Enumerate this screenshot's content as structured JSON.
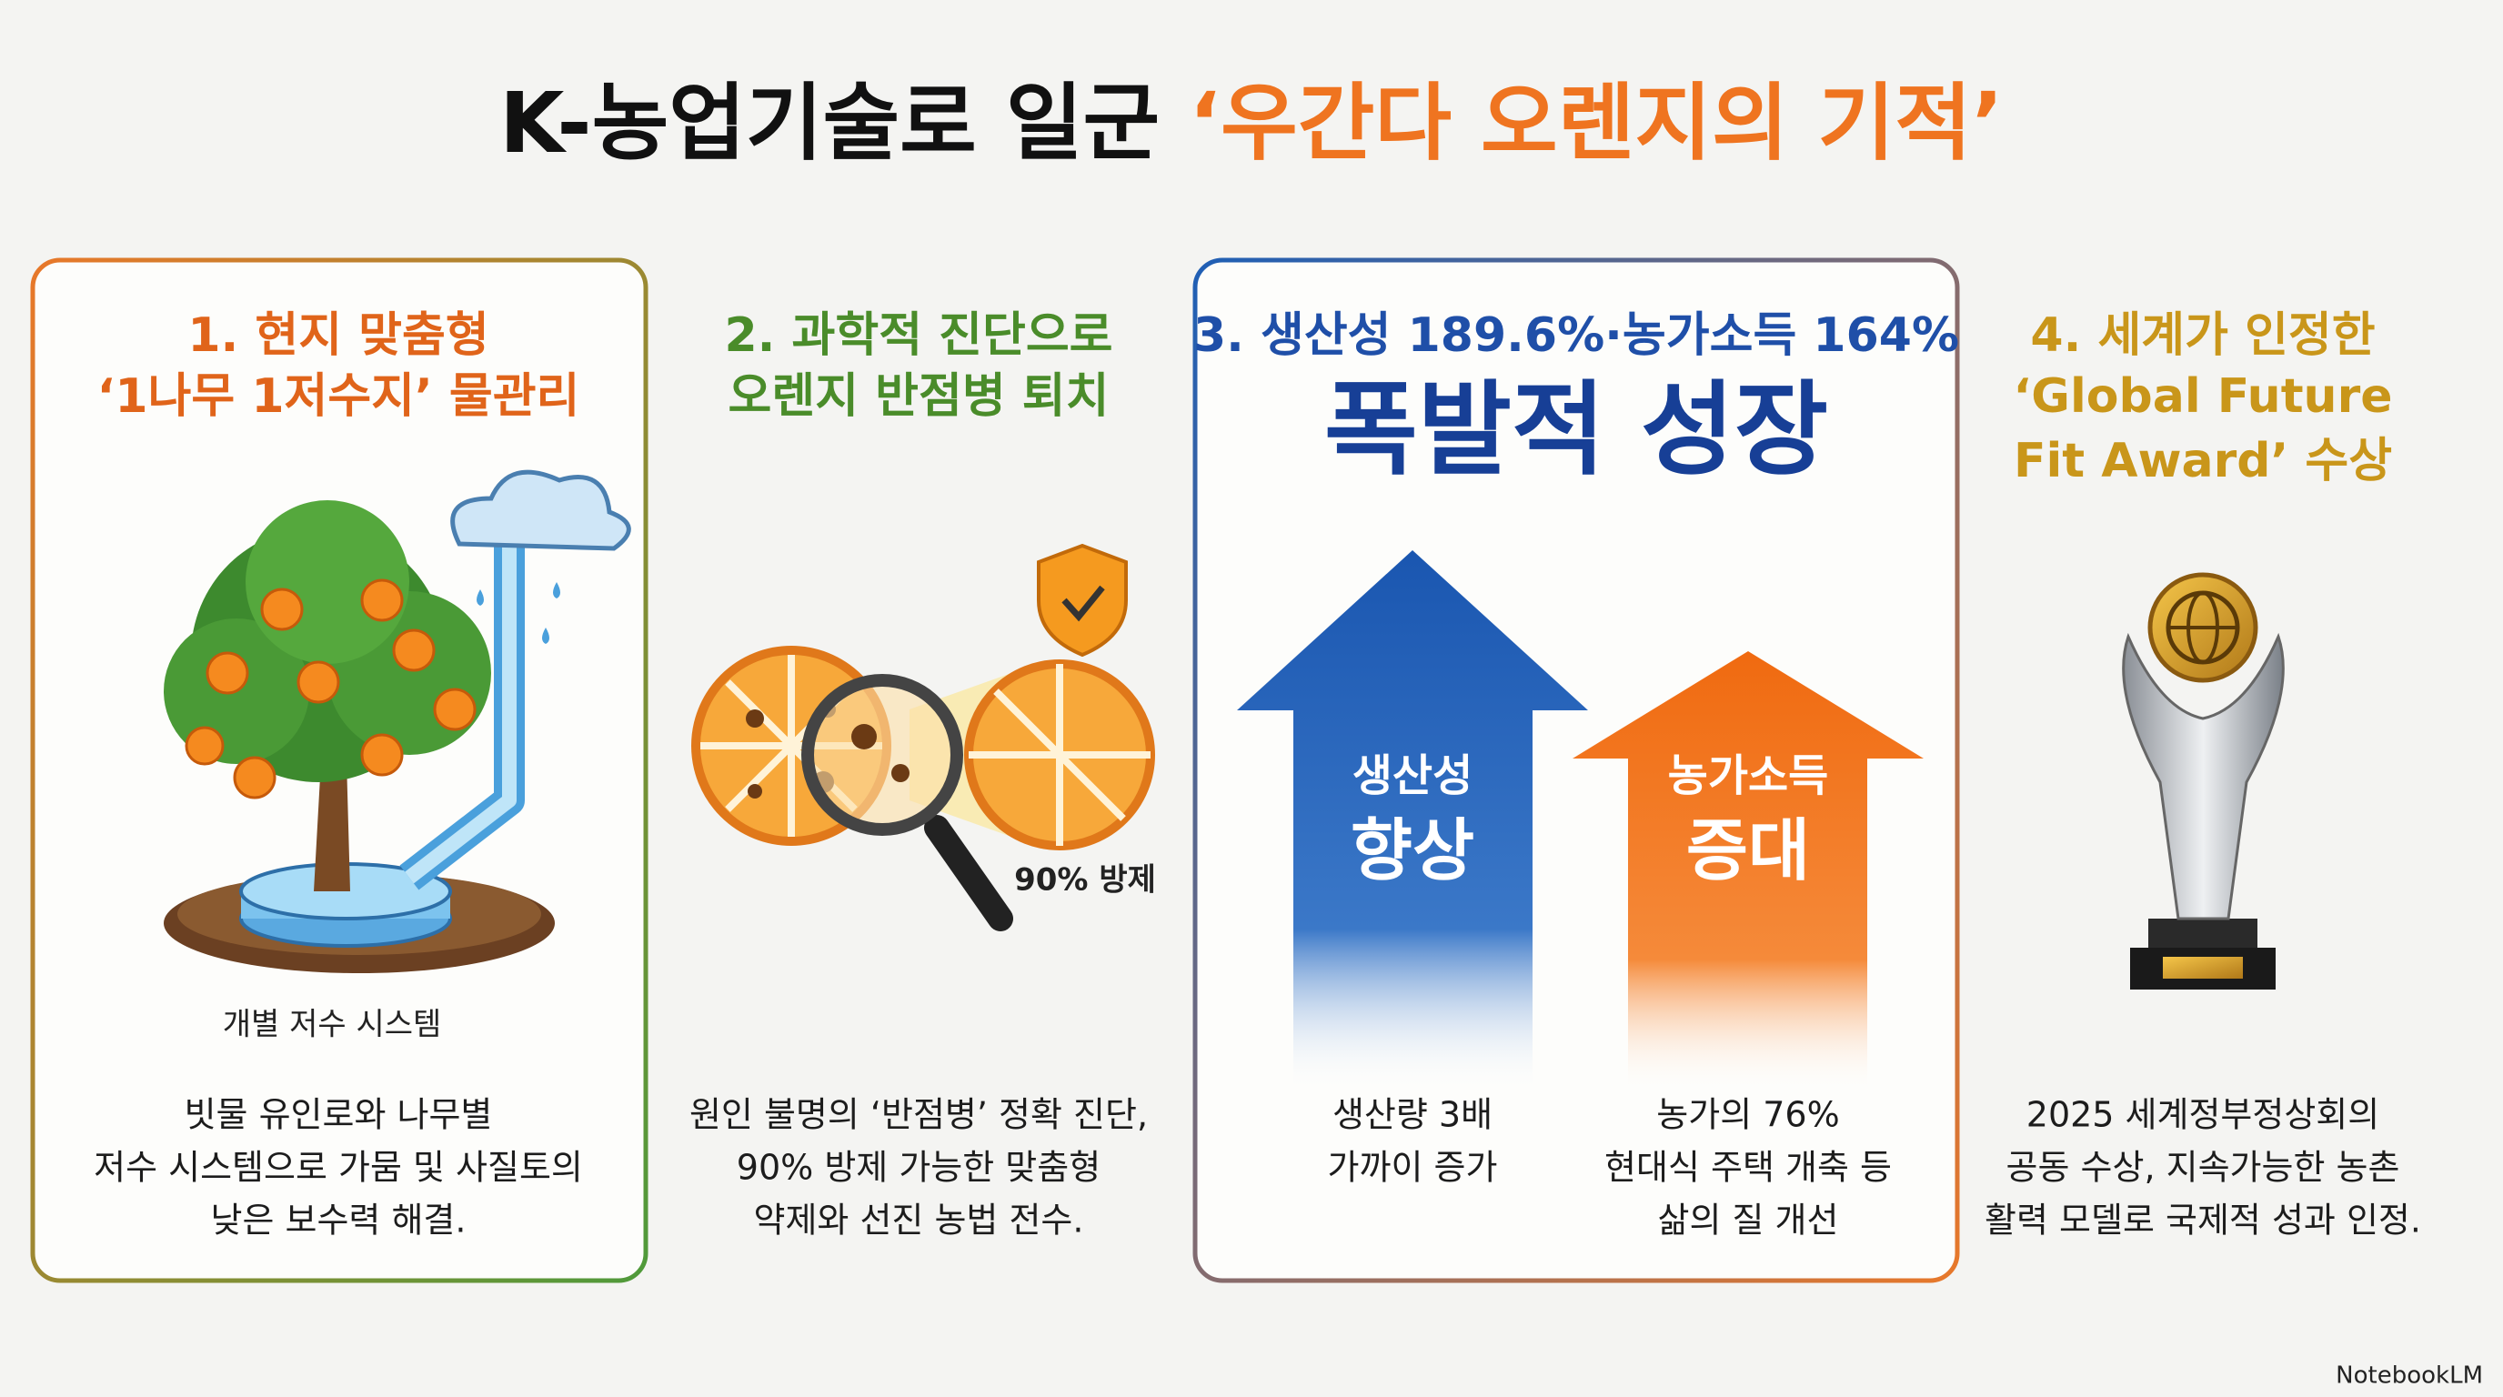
{
  "header": {
    "title": "K-농업기술로 일군 ",
    "title_highlight": "‘우간다 오렌지의 기적’"
  },
  "panels": [
    {
      "heading": [
        "1. 현지 맞춤형",
        "‘1나무 1저수지’ 물관리"
      ],
      "illustration_label": "개별 저수 시스템",
      "body": [
        "빗물 유인로와 나무별",
        "저수 시스템으로 가뭄 및 사질토의",
        "낮은 보수력 해결."
      ]
    },
    {
      "heading": [
        "2. 과학적 진단으로",
        "오렌지 반점병 퇴치"
      ],
      "illustration_label": "90% 방제",
      "body": [
        "원인 불명의 ‘반점병’ 정확 진단,",
        "90% 방제 가능한 맞춤형",
        "약제와 선진 농법 전수."
      ]
    },
    {
      "heading": [
        "3. 생산성 189.6%·농가소득 164%"
      ],
      "headline": "폭발적 성장",
      "arrows": [
        {
          "label": [
            "생산성",
            "향상"
          ],
          "caption": [
            "생산량 3배",
            "가까이 증가"
          ]
        },
        {
          "label": [
            "농가소득",
            "증대"
          ],
          "caption": [
            "농가의 76%",
            "현대식 주택 개축 등",
            "삶의 질 개선"
          ]
        }
      ]
    },
    {
      "heading": [
        "4. 세계가 인정한",
        "‘Global Future",
        "Fit Award’ 수상"
      ],
      "body": [
        "2025 세계정부정상회의",
        "공동 수상, 지속가능한 농촌",
        "활력 모델로 국제적 성과 인정."
      ]
    }
  ],
  "footer": {
    "brand": "NotebookLM"
  }
}
